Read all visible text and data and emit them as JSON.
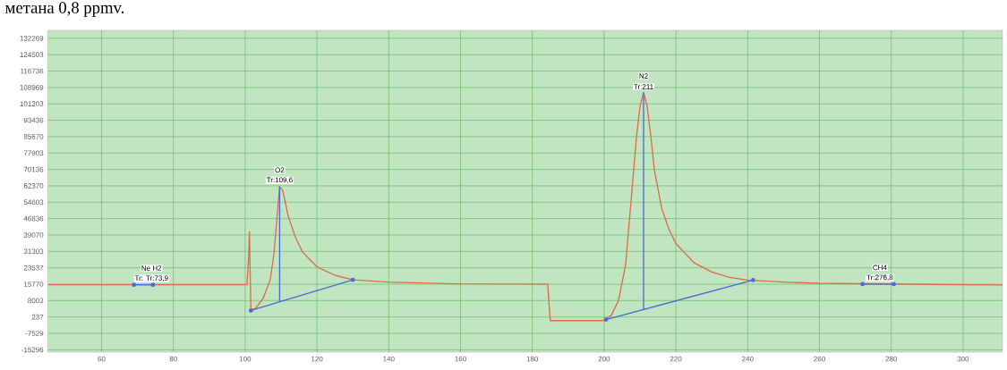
{
  "chart_data": {
    "type": "line",
    "annotations": [
      "метана 0,8 ppmv.",
      {
        "text": "Ne H2",
        "x": 73.9,
        "y": 15500
      },
      {
        "text": "Tr: Tr:73,9",
        "x": 73.9,
        "y": 15500
      },
      {
        "text": "O2",
        "x": 109.6,
        "y": 62000
      },
      {
        "text": "Tr:109,6",
        "x": 109.6,
        "y": 62000
      },
      {
        "text": "N2",
        "x": 211,
        "y": 106600
      },
      {
        "text": "Tr:211",
        "x": 211,
        "y": 106600
      },
      {
        "text": "CH4",
        "x": 276.8,
        "y": 15800
      },
      {
        "text": "Tr:276,8",
        "x": 276.8,
        "y": 15800
      }
    ],
    "xlim": [
      45,
      311
    ],
    "ylim": [
      -16400,
      136000
    ],
    "xticks": [
      60,
      80,
      100,
      120,
      140,
      160,
      180,
      200,
      220,
      240,
      260,
      280,
      300
    ],
    "yticks": [
      -15296,
      -7529,
      237,
      8003,
      15770,
      23537,
      31303,
      39070,
      46836,
      54603,
      62370,
      70136,
      77903,
      85670,
      93436,
      101203,
      108969,
      116736,
      124503,
      132269
    ],
    "grid": true,
    "series": [
      {
        "color": "#e06a4e",
        "x": [
          45,
          100.5,
          101.0,
          101.2,
          101.4,
          101.6,
          103,
          105,
          107,
          108,
          109,
          109.6,
          110.5,
          112,
          114,
          116,
          120,
          125,
          130,
          140,
          160,
          184.3,
          184.6,
          185,
          199.3,
          200,
          202,
          204,
          206,
          207,
          208,
          209,
          210,
          211,
          212,
          213,
          214,
          216,
          218,
          220,
          225,
          230,
          235,
          240,
          250,
          260,
          300,
          311
        ],
        "values": [
          15500,
          15500,
          30000,
          40600,
          20000,
          3300,
          4500,
          9000,
          18000,
          30000,
          50000,
          62000,
          60000,
          48000,
          38000,
          31000,
          24000,
          20000,
          17800,
          16800,
          15900,
          15800,
          8000,
          -1500,
          -1500,
          -1300,
          1000,
          8000,
          25000,
          45000,
          65000,
          85000,
          100000,
          106600,
          100000,
          86000,
          70000,
          52000,
          42000,
          35000,
          26000,
          21500,
          19000,
          17700,
          16800,
          16200,
          15500,
          15400
        ]
      },
      {
        "color": "#4a6cd4",
        "marker": "circle",
        "x": [
          101.6,
          130
        ],
        "values": [
          3300,
          17800
        ]
      },
      {
        "color": "#4a6cd4",
        "x": [
          109.6,
          109.6
        ],
        "values": [
          62000,
          7400
        ]
      },
      {
        "color": "#4a6cd4",
        "marker": "circle",
        "x": [
          200.5,
          241.5
        ],
        "values": [
          -1000,
          17700
        ]
      },
      {
        "color": "#4a6cd4",
        "x": [
          211,
          211
        ],
        "values": [
          106600,
          3800
        ]
      },
      {
        "color": "#4a6cd4",
        "marker": "circle",
        "x": [
          69,
          74.3
        ],
        "values": [
          15500,
          15500
        ]
      },
      {
        "color": "#4a6cd4",
        "marker": "circle",
        "x": [
          272,
          280.7
        ],
        "values": [
          15800,
          15800
        ]
      }
    ]
  }
}
